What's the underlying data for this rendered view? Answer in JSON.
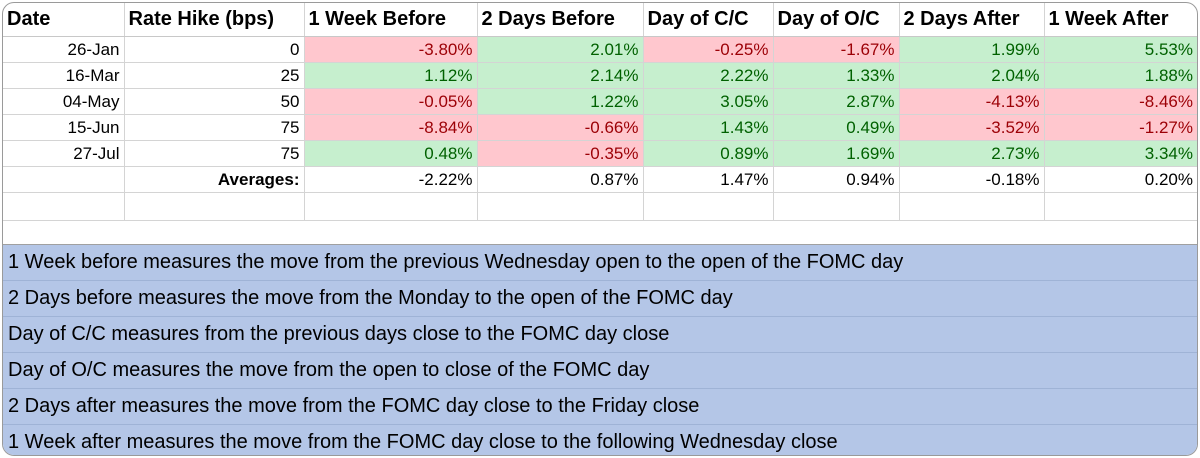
{
  "table": {
    "headers": [
      "Date",
      "Rate Hike (bps)",
      "1 Week Before",
      "2 Days Before",
      "Day of C/C",
      "Day of O/C",
      "2 Days After",
      "1 Week After"
    ],
    "rows": [
      {
        "date": "26-Jan",
        "hike": "0",
        "values": [
          "-3.80%",
          "2.01%",
          "-0.25%",
          "-1.67%",
          "1.99%",
          "5.53%"
        ]
      },
      {
        "date": "16-Mar",
        "hike": "25",
        "values": [
          "1.12%",
          "2.14%",
          "2.22%",
          "1.33%",
          "2.04%",
          "1.88%"
        ]
      },
      {
        "date": "04-May",
        "hike": "50",
        "values": [
          "-0.05%",
          "1.22%",
          "3.05%",
          "2.87%",
          "-4.13%",
          "-8.46%"
        ]
      },
      {
        "date": "15-Jun",
        "hike": "75",
        "values": [
          "-8.84%",
          "-0.66%",
          "1.43%",
          "0.49%",
          "-3.52%",
          "-1.27%"
        ]
      },
      {
        "date": "27-Jul",
        "hike": "75",
        "values": [
          "0.48%",
          "-0.35%",
          "0.89%",
          "1.69%",
          "2.73%",
          "3.34%"
        ]
      }
    ],
    "averages_label": "Averages:",
    "averages": [
      "-2.22%",
      "0.87%",
      "1.47%",
      "0.94%",
      "-0.18%",
      "0.20%"
    ],
    "colors": {
      "positive_fill": "#c6efce",
      "positive_text": "#006100",
      "negative_fill": "#ffc7ce",
      "negative_text": "#9c0006",
      "notes_fill": "#b4c6e7"
    }
  },
  "notes": [
    "1 Week before measures the move from the previous Wednesday open to the open of the FOMC day",
    "2 Days before measures the move from the Monday to the open of the FOMC day",
    "Day of C/C measures from the previous days close to the FOMC day close",
    "Day of O/C measures the move from the open to close of the FOMC day",
    "2 Days after measures the move from the FOMC day close to the Friday close",
    "1 Week after measures the move from the FOMC day close to the following Wednesday close"
  ]
}
